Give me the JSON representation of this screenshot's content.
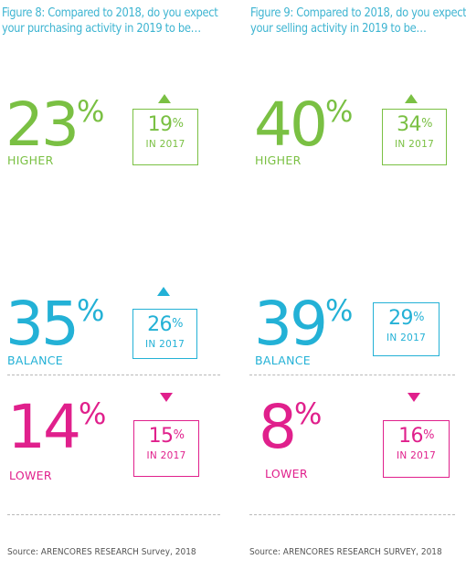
{
  "colors": {
    "higher": "#7ac043",
    "balance": "#23b1d6",
    "lower": "#e0208c",
    "title": "#3db4d1",
    "source": "#555555"
  },
  "chart_data": [
    {
      "type": "table",
      "title_line1": "Figure 8: Compared to 2018, do you expect",
      "title_line2": "your purchasing activity in 2019 to be…",
      "categories": [
        "HIGHER",
        "BALANCE",
        "LOWER"
      ],
      "series": [
        {
          "name": "2019",
          "values": [
            23,
            35,
            14
          ]
        },
        {
          "name": "IN 2017",
          "values": [
            19,
            26,
            15
          ]
        }
      ],
      "unit": "%",
      "trend": [
        "up",
        "up",
        "down"
      ],
      "source": "Source: ARENCORES RESEARCH Survey, 2018"
    },
    {
      "type": "table",
      "title_line1": "Figure 9: Compared to 2018, do you expect",
      "title_line2": "your selling activity in 2019 to be…",
      "categories": [
        "HIGHER",
        "BALANCE",
        "LOWER"
      ],
      "series": [
        {
          "name": "2019",
          "values": [
            40,
            39,
            8
          ]
        },
        {
          "name": "IN 2017",
          "values": [
            34,
            29,
            16
          ]
        }
      ],
      "unit": "%",
      "trend": [
        "up",
        "none",
        "down"
      ],
      "source": "Source: ARENCORES RESEARCH SURVEY, 2018"
    }
  ]
}
